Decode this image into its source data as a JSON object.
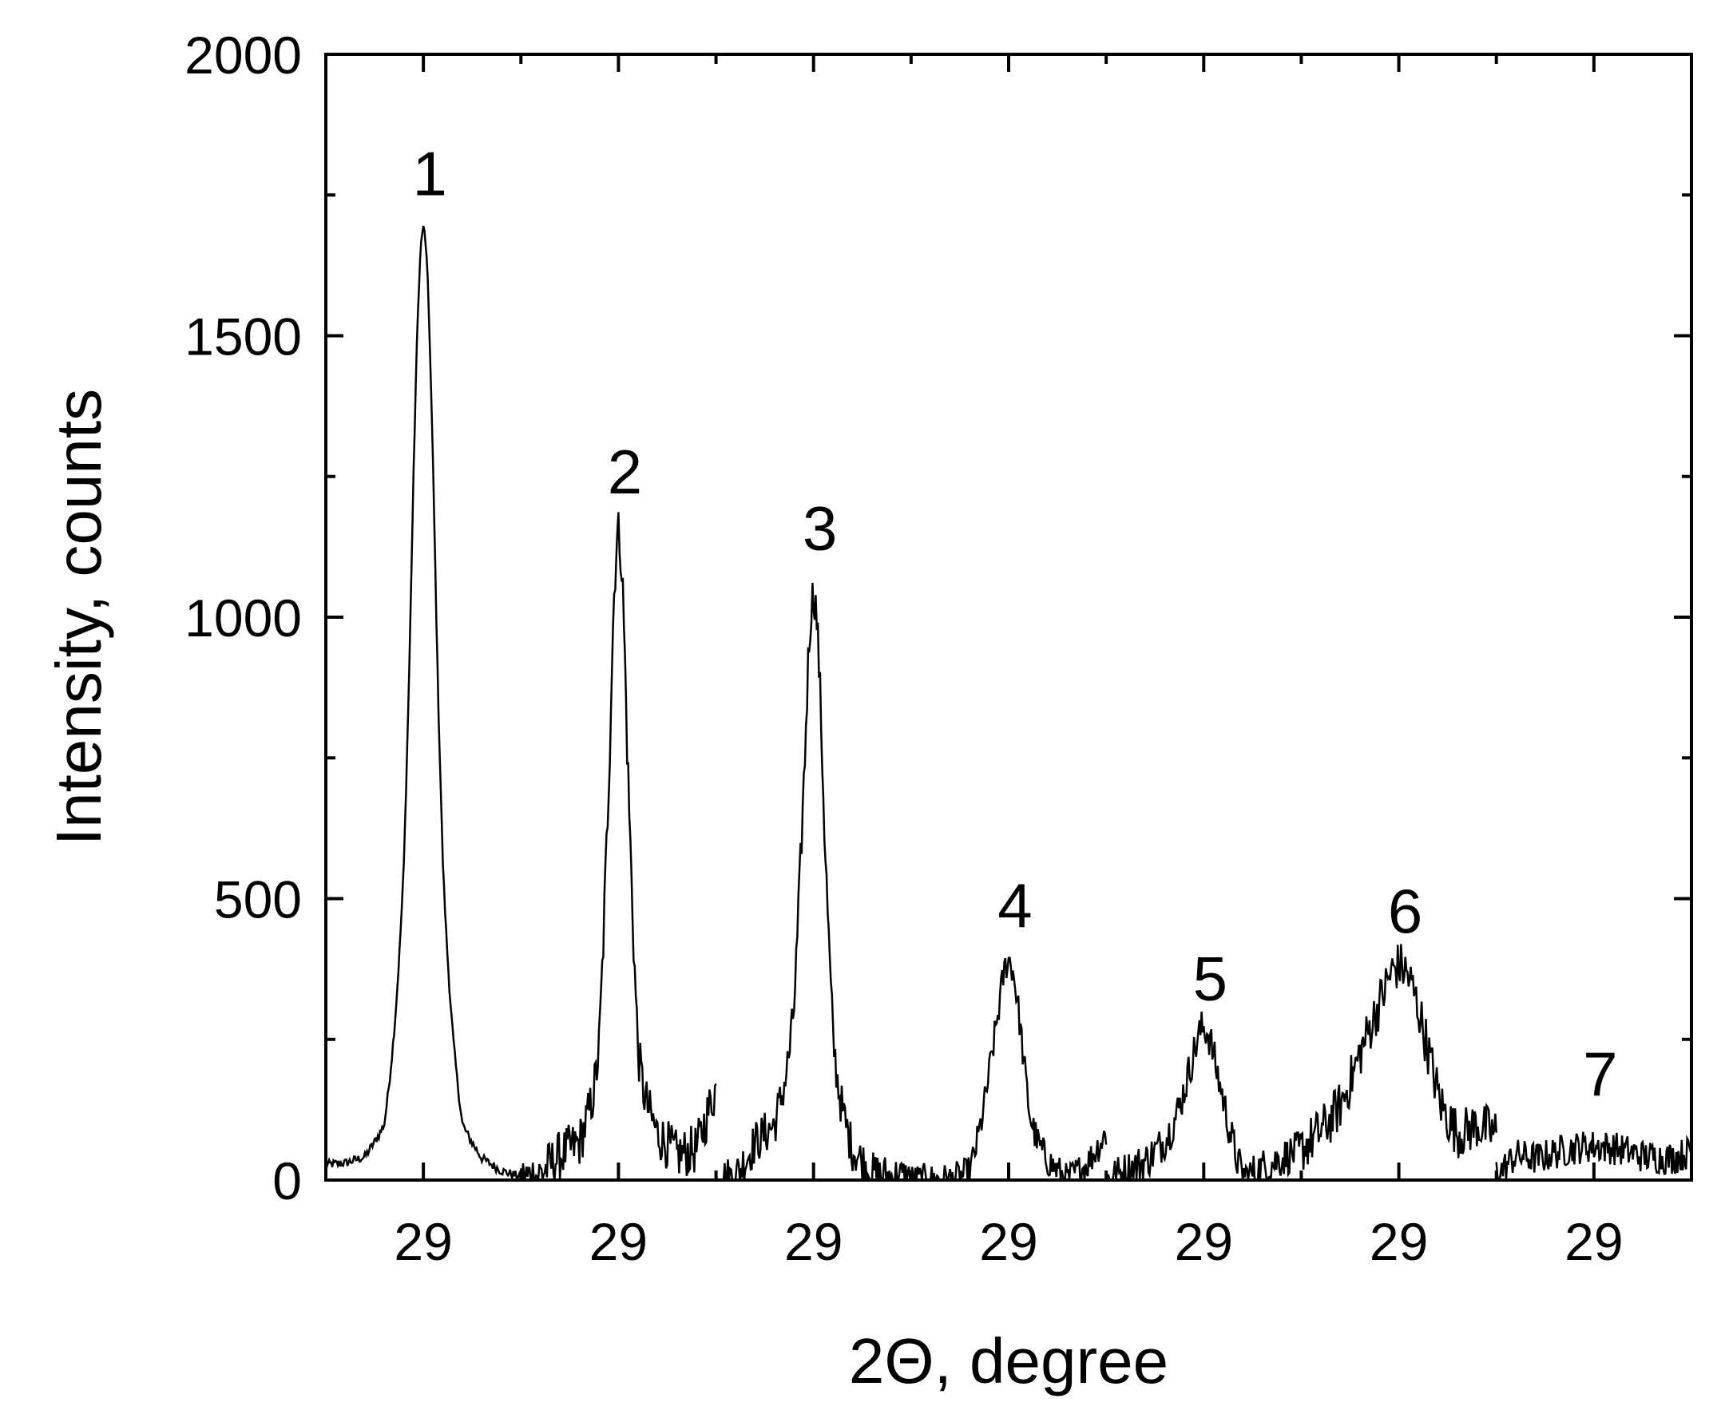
{
  "chart_data": {
    "type": "line",
    "title": "",
    "xlabel": "2Θ, degree",
    "ylabel": "Intensity, counts",
    "ylim": [
      0,
      2000
    ],
    "xlim": [
      0,
      7
    ],
    "x_tick_labels": [
      "29",
      "29",
      "29",
      "29",
      "29",
      "29",
      "29"
    ],
    "x_tick_positions": [
      0.5,
      1.5,
      2.5,
      3.5,
      4.5,
      5.5,
      6.5
    ],
    "x_minor_tick_positions": [
      1,
      2,
      3,
      4,
      5,
      6
    ],
    "y_ticks": [
      0,
      500,
      1000,
      1500,
      2000
    ],
    "y_minor_ticks": [
      250,
      750,
      1250,
      1750
    ],
    "grid": false,
    "legend": "none",
    "line_color": "#000000",
    "peak_labels": [
      {
        "label": "1",
        "x": 0.5,
        "y": 1750
      },
      {
        "label": "2",
        "x": 1.5,
        "y": 1220
      },
      {
        "label": "3",
        "x": 2.5,
        "y": 1120
      },
      {
        "label": "4",
        "x": 3.5,
        "y": 450
      },
      {
        "label": "5",
        "x": 4.5,
        "y": 320
      },
      {
        "label": "6",
        "x": 5.5,
        "y": 440
      },
      {
        "label": "7",
        "x": 6.5,
        "y": 150
      }
    ],
    "series": [
      {
        "segment": 1,
        "peak_x": 0.5,
        "peak_height": 1690,
        "width": 0.065,
        "baseline": 45,
        "noise": 8,
        "points": [
          [
            0.0,
            50
          ],
          [
            0.1,
            55
          ],
          [
            0.2,
            75
          ],
          [
            0.3,
            170
          ],
          [
            0.4,
            600
          ],
          [
            0.5,
            1690
          ],
          [
            0.6,
            600
          ],
          [
            0.7,
            170
          ],
          [
            0.8,
            70
          ],
          [
            0.9,
            30
          ],
          [
            1.0,
            10
          ]
        ]
      },
      {
        "segment": 2,
        "peak_x": 1.5,
        "peak_height": 1150,
        "width": 0.05,
        "baseline": 60,
        "noise": 45,
        "points": [
          [
            1.0,
            0
          ],
          [
            1.1,
            20
          ],
          [
            1.2,
            80
          ],
          [
            1.3,
            120
          ],
          [
            1.4,
            300
          ],
          [
            1.5,
            1150
          ],
          [
            1.6,
            300
          ],
          [
            1.7,
            150
          ],
          [
            1.8,
            80
          ],
          [
            1.9,
            100
          ],
          [
            2.0,
            300
          ]
        ]
      },
      {
        "segment": 3,
        "peak_x": 2.5,
        "peak_height": 1040,
        "width": 0.055,
        "baseline": 40,
        "noise": 40,
        "points": [
          [
            2.0,
            0
          ],
          [
            2.1,
            10
          ],
          [
            2.2,
            120
          ],
          [
            2.3,
            180
          ],
          [
            2.4,
            400
          ],
          [
            2.5,
            1040
          ],
          [
            2.6,
            300
          ],
          [
            2.7,
            100
          ],
          [
            2.8,
            20
          ],
          [
            2.9,
            10
          ],
          [
            3.0,
            0
          ]
        ]
      },
      {
        "segment": 4,
        "peak_x": 3.5,
        "peak_height": 390,
        "width": 0.07,
        "baseline": 10,
        "noise": 30,
        "points": [
          [
            3.0,
            0
          ],
          [
            3.2,
            0
          ],
          [
            3.3,
            20
          ],
          [
            3.4,
            230
          ],
          [
            3.5,
            390
          ],
          [
            3.6,
            120
          ],
          [
            3.7,
            60
          ],
          [
            3.8,
            0
          ],
          [
            3.9,
            50
          ],
          [
            4.0,
            150
          ]
        ]
      },
      {
        "segment": 5,
        "peak_x": 4.5,
        "peak_height": 270,
        "width": 0.08,
        "baseline": 40,
        "noise": 35,
        "points": [
          [
            4.0,
            0
          ],
          [
            4.2,
            60
          ],
          [
            4.3,
            120
          ],
          [
            4.4,
            190
          ],
          [
            4.5,
            270
          ],
          [
            4.6,
            160
          ],
          [
            4.7,
            0
          ],
          [
            4.8,
            40
          ],
          [
            5.0,
            100
          ]
        ]
      },
      {
        "segment": 6,
        "peak_x": 5.5,
        "peak_height": 380,
        "width": 0.15,
        "baseline": 90,
        "noise": 45,
        "points": [
          [
            5.0,
            100
          ],
          [
            5.2,
            200
          ],
          [
            5.3,
            280
          ],
          [
            5.4,
            320
          ],
          [
            5.5,
            380
          ],
          [
            5.6,
            220
          ],
          [
            5.7,
            140
          ],
          [
            5.8,
            110
          ],
          [
            5.9,
            170
          ],
          [
            6.0,
            150
          ]
        ]
      },
      {
        "segment": 7,
        "peak_x": 6.5,
        "peak_height": 60,
        "width": 0.3,
        "baseline": 20,
        "noise": 30,
        "points": [
          [
            6.0,
            0
          ],
          [
            6.1,
            60
          ],
          [
            6.3,
            20
          ],
          [
            6.5,
            60
          ],
          [
            6.7,
            40
          ],
          [
            6.9,
            50
          ],
          [
            7.0,
            80
          ]
        ]
      }
    ]
  }
}
